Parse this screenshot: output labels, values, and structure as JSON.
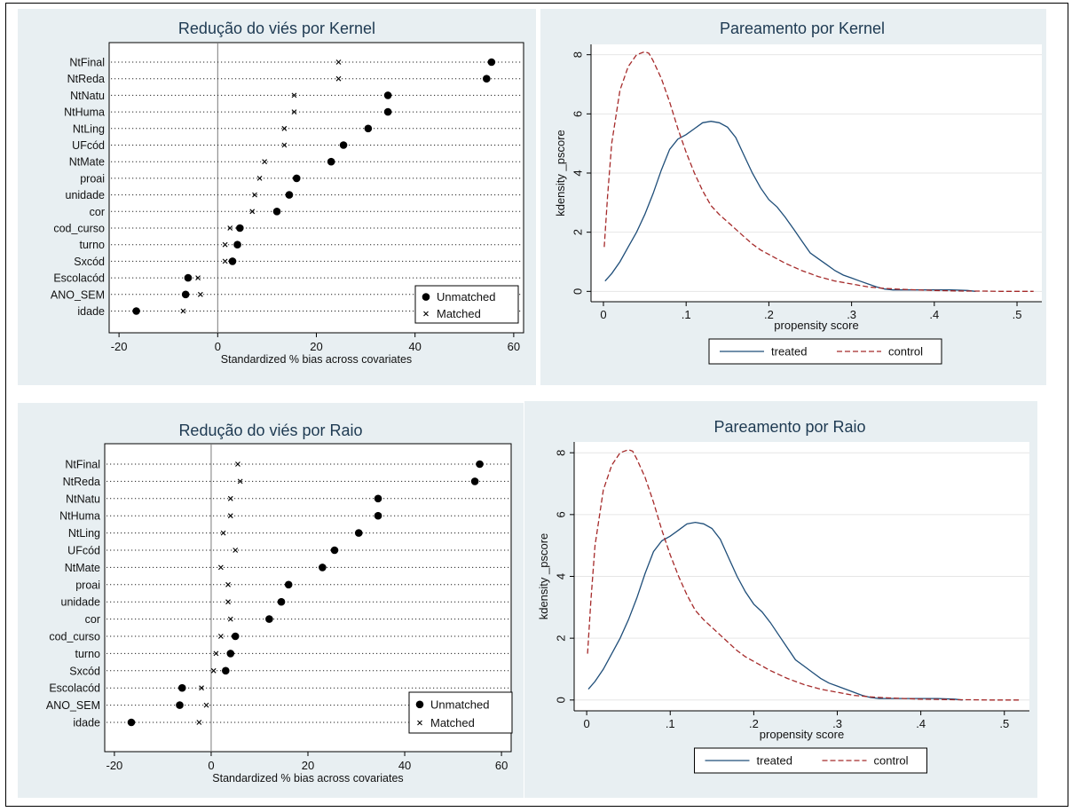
{
  "chart_data": [
    {
      "type": "dot",
      "title": "Redução do viés por Kernel",
      "xlabel": "Standardized % bias across covariates",
      "xlim": [
        -22,
        62
      ],
      "xticks": [
        -20,
        0,
        20,
        40,
        60
      ],
      "categories": [
        "NtFinal",
        "NtReda",
        "NtNatu",
        "NtHuma",
        "NtLing",
        "UFcód",
        "NtMate",
        "proai",
        "unidade",
        "cor",
        "cod_curso",
        "turno",
        "Sxcód",
        "Escolacód",
        "ANO_SEM",
        "idade"
      ],
      "series": [
        {
          "name": "Unmatched",
          "marker": "dot",
          "values": [
            55.5,
            54.5,
            34.5,
            34.5,
            30.5,
            25.5,
            23.0,
            16.0,
            14.5,
            12.0,
            4.5,
            4.0,
            3.0,
            -6.0,
            -6.5,
            -16.5
          ]
        },
        {
          "name": "Matched",
          "marker": "x",
          "values": [
            24.5,
            24.5,
            15.5,
            15.5,
            13.5,
            13.5,
            9.5,
            8.5,
            7.5,
            7.0,
            2.5,
            1.5,
            1.5,
            -4.0,
            -3.5,
            -7.0
          ]
        }
      ],
      "legend_position": "bottom-right",
      "grid": false
    },
    {
      "type": "line",
      "title": "Pareamento por Kernel",
      "xlabel": "propensity score",
      "ylabel": "kdensity _pscore",
      "xlim": [
        -0.015,
        0.53
      ],
      "ylim": [
        -0.35,
        8.35
      ],
      "xticks": [
        0,
        0.1,
        0.2,
        0.3,
        0.4,
        0.5
      ],
      "xtick_labels": [
        "0",
        ".1",
        ".2",
        ".3",
        ".4",
        ".5"
      ],
      "yticks": [
        0,
        2,
        4,
        6,
        8
      ],
      "series": [
        {
          "name": "treated",
          "color": "#1f4e79",
          "dash": "solid",
          "x": [
            0.002,
            0.01,
            0.02,
            0.03,
            0.04,
            0.05,
            0.06,
            0.07,
            0.08,
            0.09,
            0.1,
            0.11,
            0.12,
            0.13,
            0.14,
            0.15,
            0.16,
            0.17,
            0.18,
            0.19,
            0.2,
            0.21,
            0.22,
            0.23,
            0.24,
            0.25,
            0.26,
            0.27,
            0.28,
            0.29,
            0.3,
            0.31,
            0.32,
            0.33,
            0.34,
            0.35,
            0.36,
            0.38,
            0.4,
            0.42,
            0.44,
            0.45
          ],
          "y": [
            0.35,
            0.6,
            1.0,
            1.5,
            2.0,
            2.6,
            3.3,
            4.1,
            4.8,
            5.15,
            5.3,
            5.5,
            5.7,
            5.75,
            5.7,
            5.55,
            5.2,
            4.6,
            4.0,
            3.5,
            3.1,
            2.85,
            2.5,
            2.1,
            1.7,
            1.3,
            1.1,
            0.9,
            0.7,
            0.55,
            0.45,
            0.35,
            0.25,
            0.15,
            0.08,
            0.05,
            0.05,
            0.05,
            0.05,
            0.05,
            0.03,
            0.0
          ]
        },
        {
          "name": "control",
          "color": "#a52a2a",
          "dash": "dashed",
          "x": [
            0.001,
            0.005,
            0.01,
            0.02,
            0.03,
            0.04,
            0.05,
            0.055,
            0.06,
            0.07,
            0.08,
            0.09,
            0.1,
            0.11,
            0.12,
            0.13,
            0.14,
            0.15,
            0.16,
            0.17,
            0.18,
            0.19,
            0.2,
            0.22,
            0.24,
            0.26,
            0.28,
            0.3,
            0.32,
            0.34,
            0.36,
            0.38,
            0.4,
            0.42,
            0.44,
            0.46,
            0.48,
            0.5,
            0.52
          ],
          "y": [
            1.5,
            3.2,
            5.0,
            6.8,
            7.6,
            8.0,
            8.1,
            8.05,
            7.8,
            7.2,
            6.4,
            5.5,
            4.7,
            4.0,
            3.4,
            2.9,
            2.6,
            2.35,
            2.1,
            1.85,
            1.6,
            1.4,
            1.25,
            0.95,
            0.7,
            0.5,
            0.35,
            0.25,
            0.15,
            0.1,
            0.07,
            0.05,
            0.03,
            0.02,
            0.01,
            0.01,
            0.0,
            0.0,
            0.0
          ]
        }
      ],
      "legend_position": "bottom",
      "grid": true
    },
    {
      "type": "dot",
      "title": "Redução do viés por Raio",
      "xlabel": "Standardized % bias across covariates",
      "xlim": [
        -22,
        62
      ],
      "xticks": [
        -20,
        0,
        20,
        40,
        60
      ],
      "categories": [
        "NtFinal",
        "NtReda",
        "NtNatu",
        "NtHuma",
        "NtLing",
        "UFcód",
        "NtMate",
        "proai",
        "unidade",
        "cor",
        "cod_curso",
        "turno",
        "Sxcód",
        "Escolacód",
        "ANO_SEM",
        "idade"
      ],
      "series": [
        {
          "name": "Unmatched",
          "marker": "dot",
          "values": [
            55.5,
            54.5,
            34.5,
            34.5,
            30.5,
            25.5,
            23.0,
            16.0,
            14.5,
            12.0,
            5.0,
            4.0,
            3.0,
            -6.0,
            -6.5,
            -16.5
          ]
        },
        {
          "name": "Matched",
          "marker": "x",
          "values": [
            5.5,
            6.0,
            4.0,
            4.0,
            2.5,
            5.0,
            2.0,
            3.5,
            3.5,
            4.0,
            2.0,
            1.0,
            0.5,
            -2.0,
            -1.0,
            -2.5
          ]
        }
      ],
      "legend_position": "bottom-right",
      "grid": false
    },
    {
      "type": "line",
      "title": "Pareamento por Raio",
      "xlabel": "propensity score",
      "ylabel": "kdensity _pscore",
      "xlim": [
        -0.015,
        0.53
      ],
      "ylim": [
        -0.35,
        8.35
      ],
      "xticks": [
        0,
        0.1,
        0.2,
        0.3,
        0.4,
        0.5
      ],
      "xtick_labels": [
        "0",
        ".1",
        ".2",
        ".3",
        ".4",
        ".5"
      ],
      "yticks": [
        0,
        2,
        4,
        6,
        8
      ],
      "series": [
        {
          "name": "treated",
          "color": "#1f4e79",
          "dash": "solid",
          "x": [
            0.002,
            0.01,
            0.02,
            0.03,
            0.04,
            0.05,
            0.06,
            0.07,
            0.08,
            0.09,
            0.1,
            0.11,
            0.12,
            0.13,
            0.14,
            0.15,
            0.16,
            0.17,
            0.18,
            0.19,
            0.2,
            0.21,
            0.22,
            0.23,
            0.24,
            0.25,
            0.26,
            0.27,
            0.28,
            0.29,
            0.3,
            0.31,
            0.32,
            0.33,
            0.34,
            0.35,
            0.36,
            0.38,
            0.4,
            0.42,
            0.44,
            0.45
          ],
          "y": [
            0.35,
            0.6,
            1.0,
            1.5,
            2.0,
            2.6,
            3.3,
            4.1,
            4.8,
            5.15,
            5.3,
            5.5,
            5.7,
            5.75,
            5.7,
            5.55,
            5.2,
            4.6,
            4.0,
            3.5,
            3.1,
            2.85,
            2.5,
            2.1,
            1.7,
            1.3,
            1.1,
            0.9,
            0.7,
            0.55,
            0.45,
            0.35,
            0.25,
            0.15,
            0.08,
            0.05,
            0.05,
            0.05,
            0.05,
            0.05,
            0.03,
            0.0
          ]
        },
        {
          "name": "control",
          "color": "#a52a2a",
          "dash": "dashed",
          "x": [
            0.001,
            0.005,
            0.01,
            0.02,
            0.03,
            0.04,
            0.05,
            0.055,
            0.06,
            0.07,
            0.08,
            0.09,
            0.1,
            0.11,
            0.12,
            0.13,
            0.14,
            0.15,
            0.16,
            0.17,
            0.18,
            0.19,
            0.2,
            0.22,
            0.24,
            0.26,
            0.28,
            0.3,
            0.32,
            0.34,
            0.36,
            0.38,
            0.4,
            0.42,
            0.44,
            0.46,
            0.48,
            0.5,
            0.52
          ],
          "y": [
            1.5,
            3.2,
            5.0,
            6.8,
            7.6,
            8.0,
            8.1,
            8.05,
            7.8,
            7.2,
            6.4,
            5.5,
            4.7,
            4.0,
            3.4,
            2.9,
            2.6,
            2.35,
            2.1,
            1.85,
            1.6,
            1.4,
            1.25,
            0.95,
            0.7,
            0.5,
            0.35,
            0.25,
            0.15,
            0.1,
            0.07,
            0.05,
            0.03,
            0.02,
            0.01,
            0.01,
            0.0,
            0.0,
            0.0
          ]
        }
      ],
      "legend_position": "bottom",
      "grid": true
    }
  ]
}
